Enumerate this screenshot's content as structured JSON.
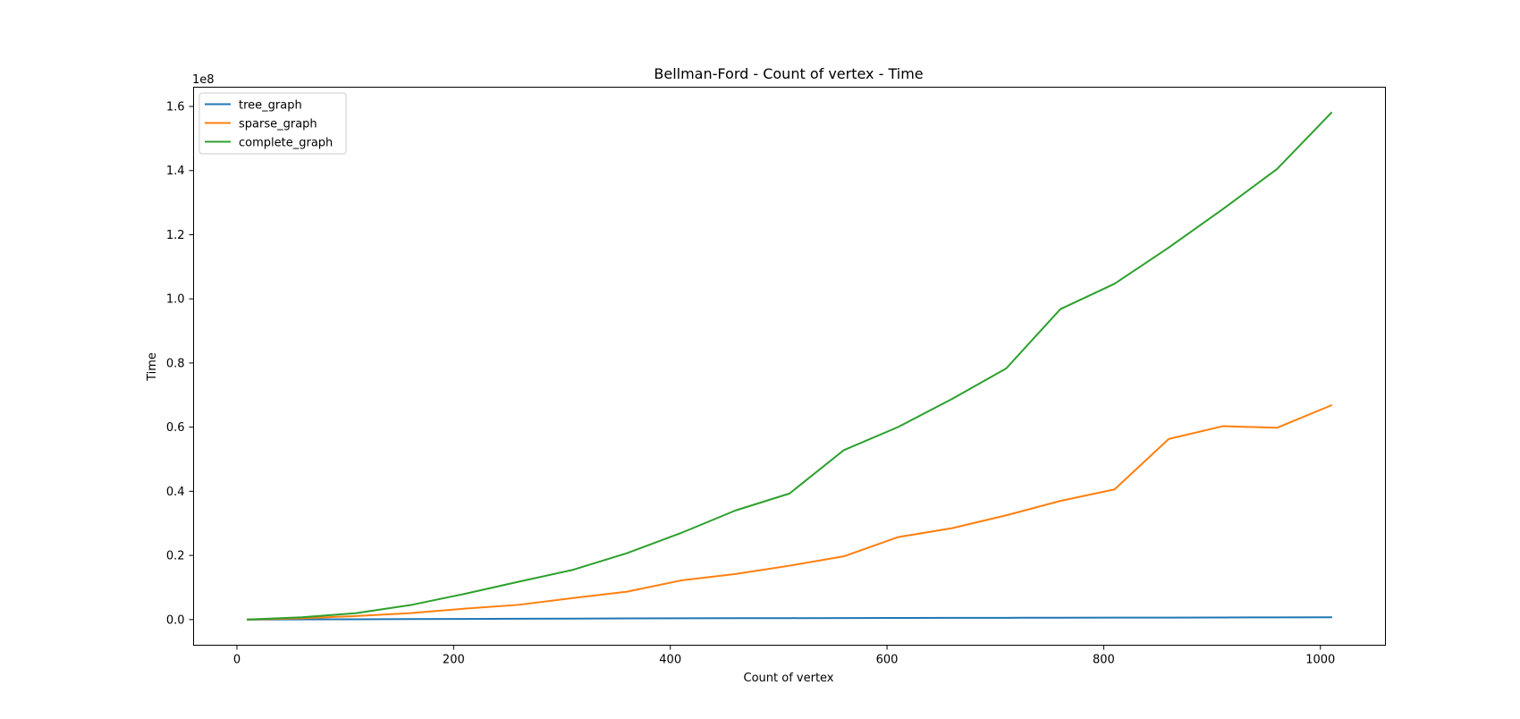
{
  "chart_data": {
    "type": "line",
    "title": "Bellman-Ford - Count of vertex - Time",
    "xlabel": "Count of vertex",
    "ylabel": "Time",
    "y_offset_label": "1e8",
    "y_scale_factor": 100000000,
    "xlim": [
      -40,
      1060
    ],
    "ylim": [
      -0.08,
      1.66
    ],
    "x_ticks": [
      0,
      200,
      400,
      600,
      800,
      1000
    ],
    "x_tick_labels": [
      "0",
      "200",
      "400",
      "600",
      "800",
      "1000"
    ],
    "y_ticks": [
      0.0,
      0.2,
      0.4,
      0.6,
      0.8,
      1.0,
      1.2,
      1.4,
      1.6
    ],
    "y_tick_labels": [
      "0.0",
      "0.2",
      "0.4",
      "0.6",
      "0.8",
      "1.0",
      "1.2",
      "1.4",
      "1.6"
    ],
    "grid": false,
    "legend_position": "top-left",
    "x": [
      10,
      60,
      110,
      160,
      210,
      260,
      310,
      360,
      410,
      460,
      510,
      560,
      610,
      660,
      710,
      760,
      810,
      860,
      910,
      960,
      1010
    ],
    "series": [
      {
        "name": "tree_graph",
        "color": "#1f77b4",
        "values": [
          0.0,
          0.0005,
          0.001,
          0.0015,
          0.002,
          0.0025,
          0.003,
          0.0035,
          0.004,
          0.0042,
          0.0045,
          0.0048,
          0.005,
          0.0053,
          0.0055,
          0.0058,
          0.006,
          0.0062,
          0.0065,
          0.0068,
          0.007
        ]
      },
      {
        "name": "sparse_graph",
        "color": "#ff7f0e",
        "values": [
          0.0,
          0.004,
          0.011,
          0.02,
          0.034,
          0.046,
          0.067,
          0.087,
          0.122,
          0.142,
          0.168,
          0.197,
          0.257,
          0.285,
          0.325,
          0.37,
          0.406,
          0.563,
          0.603,
          0.598,
          0.668
        ]
      },
      {
        "name": "complete_graph",
        "color": "#2ca02c",
        "values": [
          0.0,
          0.007,
          0.02,
          0.045,
          0.08,
          0.118,
          0.155,
          0.207,
          0.27,
          0.34,
          0.393,
          0.528,
          0.6,
          0.688,
          0.783,
          0.968,
          1.047,
          1.16,
          1.28,
          1.405,
          1.58
        ]
      }
    ]
  }
}
